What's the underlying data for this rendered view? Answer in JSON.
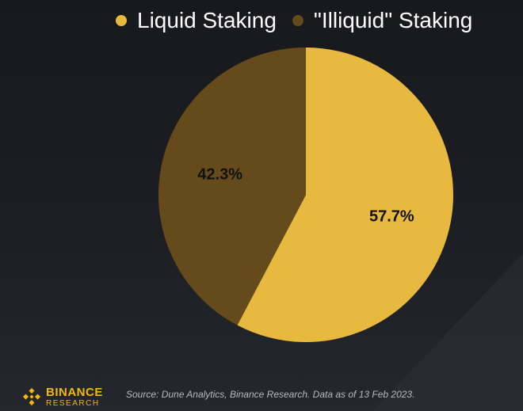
{
  "chart_data": {
    "type": "pie",
    "title": "",
    "slices": [
      {
        "label": "Liquid Staking",
        "value": 57.7,
        "value_label": "57.7%",
        "color": "#e8b93f"
      },
      {
        "label": "\"Illiquid\" Staking",
        "value": 42.3,
        "value_label": "42.3%",
        "color": "#654b1c"
      }
    ],
    "start_angle": "12 o'clock",
    "direction": "clockwise",
    "legend_position": "top"
  },
  "legend": {
    "items": [
      {
        "label": "Liquid Staking",
        "color": "#e8b93f"
      },
      {
        "label": "\"Illiquid\" Staking",
        "color": "#654b1c"
      }
    ]
  },
  "footer": {
    "logo_name": "BINANCE",
    "logo_sub": "RESEARCH",
    "source": "Source: Dune Analytics, Binance Research. Data as of 13 Feb 2023."
  },
  "colors": {
    "background": "#1b1c20",
    "brand": "#f0b90b"
  },
  "icons": {
    "logo": "binance-diamond-icon"
  }
}
